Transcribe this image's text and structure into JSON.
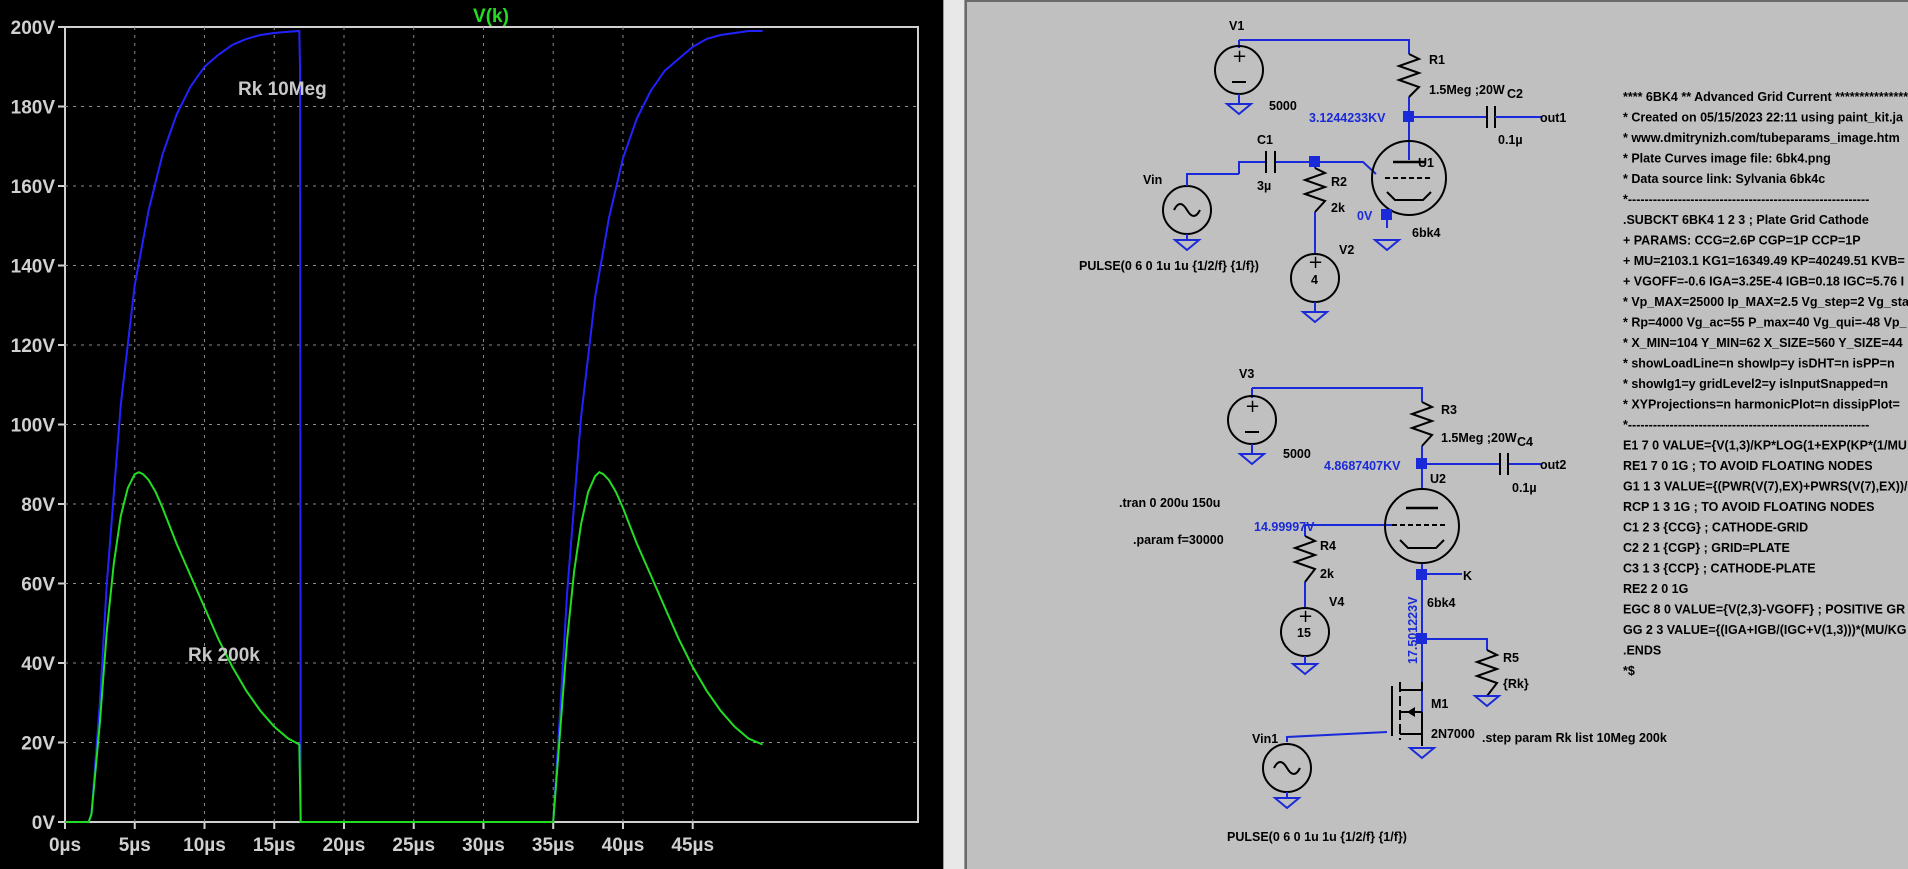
{
  "chart_data": {
    "type": "line",
    "title": "V(k)",
    "xlabel": "",
    "ylabel": "",
    "xlim": [
      0,
      50
    ],
    "ylim": [
      0,
      200
    ],
    "x_ticks": [
      "0µs",
      "5µs",
      "10µs",
      "15µs",
      "20µs",
      "25µs",
      "30µs",
      "35µs",
      "40µs",
      "45µs"
    ],
    "y_ticks": [
      "0V",
      "20V",
      "40V",
      "60V",
      "80V",
      "100V",
      "120V",
      "140V",
      "160V",
      "180V",
      "200V"
    ],
    "grid": true,
    "series": [
      {
        "name": "Rk 10Meg",
        "color": "#2222ff",
        "x": [
          0,
          1.7,
          1.9,
          2.5,
          3,
          4,
          5,
          6,
          7,
          8,
          9,
          10,
          11,
          12,
          13,
          14,
          15,
          16,
          16.8,
          16.85,
          16.9,
          17,
          20,
          25,
          30,
          34.9,
          35,
          35.5,
          36,
          37,
          38,
          39,
          40,
          41,
          42,
          43,
          44,
          45,
          46,
          47,
          48,
          49,
          50
        ],
        "y": [
          0,
          0,
          2,
          30,
          60,
          105,
          135,
          154,
          168,
          178,
          185,
          190,
          193,
          195.5,
          197,
          198,
          198.5,
          198.8,
          199,
          190,
          0,
          0,
          0,
          0,
          0,
          0,
          0,
          28,
          58,
          102,
          132,
          152,
          167,
          177,
          184,
          189,
          192,
          195,
          197,
          198,
          198.5,
          199,
          199
        ]
      },
      {
        "name": "Rk 200k",
        "color": "#22dd22",
        "x": [
          0,
          1.7,
          1.9,
          2.5,
          3,
          3.5,
          4,
          4.5,
          5,
          5.3,
          5.6,
          6,
          6.5,
          7,
          8,
          9,
          10,
          11,
          12,
          13,
          14,
          15,
          16,
          16.8,
          16.85,
          16.9,
          17,
          20,
          25,
          30,
          34.9,
          35,
          35.5,
          36,
          36.5,
          37,
          37.5,
          38,
          38.3,
          38.6,
          39,
          39.5,
          40,
          41,
          42,
          43,
          44,
          45,
          46,
          47,
          48,
          49,
          50
        ],
        "y": [
          0,
          0,
          2,
          25,
          48,
          65,
          77,
          84,
          87.5,
          88,
          87.5,
          86,
          83,
          79,
          70,
          62,
          54,
          46,
          39,
          33,
          28,
          24,
          21,
          19.5,
          10,
          0,
          0,
          0,
          0,
          0,
          0,
          0,
          23,
          46,
          63,
          75,
          83,
          87,
          88,
          87.5,
          86,
          83,
          79,
          70,
          62,
          54,
          46,
          39,
          33,
          28,
          24,
          21,
          19.5
        ]
      }
    ],
    "annotations": [
      "Rk 10Meg",
      "Rk 200k"
    ]
  },
  "schematic": {
    "components": {
      "v1": {
        "ref": "V1",
        "value": "5000"
      },
      "r1": {
        "ref": "R1",
        "value": "1.5Meg ;20W"
      },
      "c2": {
        "ref": "C2",
        "value": "0.1µ"
      },
      "out1": "out1",
      "u1": {
        "ref": "U1",
        "value": "6bk4"
      },
      "node_u1_plate": "3.1244233KV",
      "vin": {
        "ref": "Vin",
        "value": "PULSE(0 6 0 1u 1u {1/2/f} {1/f})"
      },
      "c1": {
        "ref": "C1",
        "value": "3µ"
      },
      "r2": {
        "ref": "R2",
        "value": "2k"
      },
      "v2": {
        "ref": "V2",
        "value": "4"
      },
      "node_u1_cathode": "0V",
      "v3": {
        "ref": "V3",
        "value": "5000"
      },
      "r3": {
        "ref": "R3",
        "value": "1.5Meg ;20W"
      },
      "c4": {
        "ref": "C4",
        "value": "0.1µ"
      },
      "out2": "out2",
      "u2": {
        "ref": "U2",
        "value": "6bk4"
      },
      "node_u2_plate": "4.8687407KV",
      "node_u2_grid": "14.99997V",
      "r4": {
        "ref": "R4",
        "value": "2k"
      },
      "v4": {
        "ref": "V4",
        "value": "15"
      },
      "node_k": "K",
      "node_k_voltage": "17.501223V",
      "r5": {
        "ref": "R5",
        "value": "{Rk}"
      },
      "m1": {
        "ref": "M1",
        "value": "2N7000"
      },
      "vin1": {
        "ref": "Vin1",
        "value": "PULSE(0 6 0 1u 1u {1/2/f} {1/f})"
      }
    },
    "directives": {
      "tran": ".tran 0 200u 150u",
      "param": ".param f=30000",
      "step": ".step param Rk list 10Meg 200k"
    },
    "netlist": [
      "**** 6BK4 ** Advanced Grid Current ****************",
      "* Created on 05/15/2023 22:11 using paint_kit.ja",
      "* www.dmitrynizh.com/tubeparams_image.htm",
      "* Plate Curves image file: 6bk4.png",
      "* Data source link: Sylvania 6bk4c",
      "*----------------------------------------------------------",
      ".SUBCKT 6BK4 1 2 3 ; Plate Grid Cathode",
      "+ PARAMS: CCG=2.6P  CGP=1P CCP=1P",
      "+ MU=2103.1 KG1=16349.49 KP=40249.51 KVB=",
      "+ VGOFF=-0.6 IGA=3.25E-4 IGB=0.18 IGC=5.76 I",
      "* Vp_MAX=25000 Ip_MAX=2.5 Vg_step=2 Vg_sta",
      "* Rp=4000 Vg_ac=55 P_max=40 Vg_qui=-48 Vp_",
      "* X_MIN=104 Y_MIN=62 X_SIZE=560 Y_SIZE=44",
      "* showLoadLine=n showIp=y isDHT=n isPP=n",
      "* showIg1=y gridLevel2=y isInputSnapped=n",
      "* XYProjections=n harmonicPlot=n dissipPlot=",
      "*----------------------------------------------------------",
      "E1 7 0 VALUE={V(1,3)/KP*LOG(1+EXP(KP*(1/MU",
      "RE1 7 0 1G  ; TO AVOID FLOATING NODES",
      "G1 1 3 VALUE={(PWR(V(7),EX)+PWRS(V(7),EX))/K",
      "RCP 1 3 1G  ; TO AVOID FLOATING NODES",
      "C1 2 3 {CCG} ; CATHODE-GRID",
      "C2 2 1 {CGP} ; GRID=PLATE",
      "C3 1 3 {CCP} ; CATHODE-PLATE",
      "RE2 2 0 1G",
      "EGC 8 0 VALUE={V(2,3)-VGOFF} ; POSITIVE GR",
      "GG 2 3 VALUE={(IGA+IGB/(IGC+V(1,3)))*(MU/KG",
      ".ENDS",
      "*$"
    ]
  }
}
